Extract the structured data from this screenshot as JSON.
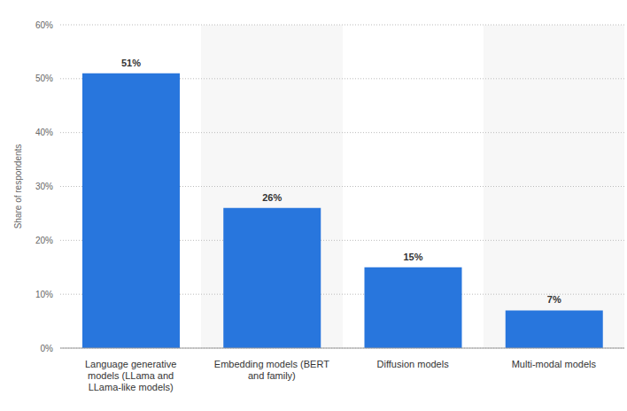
{
  "chart_data": {
    "type": "bar",
    "y_label": "Share of respondents",
    "categories": [
      "Language generative models (LLama and LLama-like models)",
      "Embedding models (BERT and family)",
      "Diffusion models",
      "Multi-modal models"
    ],
    "values": [
      51,
      26,
      15,
      7
    ],
    "value_labels": [
      "51%",
      "26%",
      "15%",
      "7%"
    ],
    "data_labels": true,
    "color": "#2876dd",
    "ylim": [
      0,
      60
    ],
    "yticks": [
      {
        "value": 0,
        "label": "0%"
      },
      {
        "value": 10,
        "label": "10%"
      },
      {
        "value": 20,
        "label": "20%"
      },
      {
        "value": 30,
        "label": "30%"
      },
      {
        "value": 40,
        "label": "40%"
      },
      {
        "value": 50,
        "label": "50%"
      },
      {
        "value": 60,
        "label": "60%"
      }
    ],
    "grid": true
  }
}
